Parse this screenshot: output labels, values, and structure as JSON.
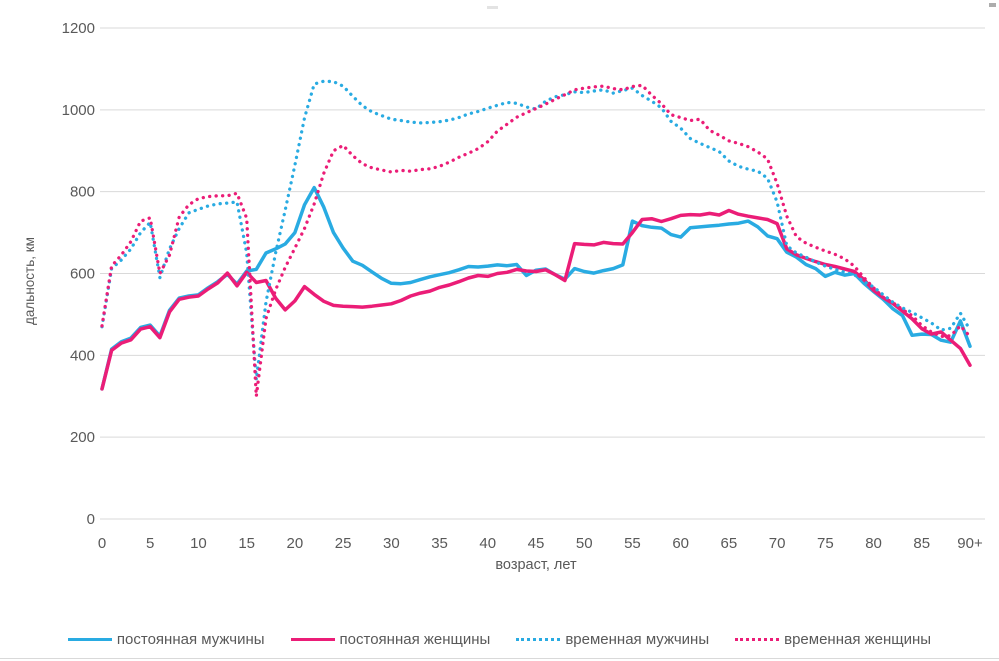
{
  "colors": {
    "blue": "#29ABE2",
    "pink": "#EB1D77",
    "grid": "#D9D9D9",
    "text": "#595959",
    "background": "#FFFFFF"
  },
  "axes": {
    "y_title": "дальность, км",
    "x_title": "возраст, лет",
    "y_ticks": [
      0,
      200,
      400,
      600,
      800,
      1000,
      1200
    ],
    "x_tick_labels": [
      "0",
      "5",
      "10",
      "15",
      "20",
      "25",
      "30",
      "35",
      "40",
      "45",
      "50",
      "55",
      "60",
      "65",
      "70",
      "75",
      "80",
      "85",
      "90+"
    ]
  },
  "chart_data": {
    "type": "line",
    "title": "",
    "xlabel": "возраст, лет",
    "ylabel": "дальность, км",
    "xlim": [
      0,
      90
    ],
    "ylim": [
      0,
      1200
    ],
    "grid": "horizontal",
    "legend_position": "bottom",
    "x_step": 1,
    "x_start": 0,
    "series": [
      {
        "name": "постоянная мужчины",
        "color_key": "blue",
        "line_style": "solid",
        "values": [
          318,
          415,
          433,
          442,
          468,
          474,
          447,
          510,
          540,
          545,
          548,
          565,
          580,
          598,
          574,
          606,
          610,
          650,
          660,
          672,
          700,
          768,
          810,
          762,
          700,
          662,
          630,
          620,
          604,
          588,
          576,
          575,
          578,
          585,
          592,
          597,
          602,
          609,
          617,
          616,
          618,
          621,
          619,
          622,
          595,
          608,
          611,
          597,
          586,
          612,
          605,
          601,
          607,
          612,
          621,
          728,
          717,
          713,
          711,
          695,
          689,
          712,
          714,
          716,
          718,
          721,
          723,
          728,
          714,
          692,
          685,
          652,
          640,
          622,
          612,
          593,
          603,
          596,
          600,
          576,
          556,
          537,
          514,
          497,
          449,
          452,
          451,
          437,
          432,
          484,
          422
        ]
      },
      {
        "name": "постоянная женщины",
        "color_key": "pink",
        "line_style": "solid",
        "values": [
          318,
          412,
          430,
          438,
          464,
          470,
          443,
          506,
          537,
          542,
          545,
          562,
          577,
          601,
          570,
          603,
          578,
          583,
          540,
          511,
          533,
          568,
          549,
          532,
          522,
          520,
          519,
          518,
          520,
          523,
          526,
          534,
          545,
          552,
          557,
          566,
          572,
          580,
          589,
          595,
          593,
          600,
          603,
          610,
          606,
          605,
          609,
          597,
          583,
          673,
          671,
          670,
          676,
          673,
          672,
          700,
          732,
          734,
          727,
          734,
          742,
          744,
          743,
          747,
          743,
          754,
          745,
          740,
          736,
          732,
          722,
          660,
          646,
          637,
          629,
          622,
          617,
          611,
          605,
          585,
          559,
          541,
          527,
          508,
          489,
          465,
          452,
          457,
          437,
          417,
          376
        ]
      },
      {
        "name": "временная мужчины",
        "color_key": "blue",
        "line_style": "dotted",
        "values": [
          470,
          612,
          633,
          660,
          700,
          725,
          590,
          660,
          710,
          748,
          757,
          765,
          770,
          772,
          775,
          650,
          340,
          530,
          650,
          755,
          865,
          980,
          1063,
          1070,
          1069,
          1058,
          1033,
          1010,
          995,
          986,
          977,
          974,
          970,
          968,
          969,
          971,
          975,
          981,
          990,
          996,
          1004,
          1011,
          1018,
          1016,
          1007,
          1002,
          1021,
          1032,
          1037,
          1044,
          1042,
          1046,
          1049,
          1041,
          1047,
          1053,
          1035,
          1021,
          1005,
          972,
          955,
          930,
          918,
          908,
          898,
          875,
          862,
          855,
          850,
          833,
          775,
          668,
          650,
          640,
          628,
          618,
          610,
          603,
          597,
          580,
          567,
          548,
          530,
          516,
          505,
          492,
          479,
          462,
          466,
          503,
          462
        ]
      },
      {
        "name": "временная женщины",
        "color_key": "pink",
        "line_style": "dotted",
        "values": [
          472,
          618,
          645,
          678,
          728,
          736,
          600,
          645,
          738,
          768,
          783,
          788,
          790,
          790,
          796,
          735,
          300,
          490,
          560,
          615,
          662,
          710,
          770,
          845,
          900,
          913,
          888,
          868,
          858,
          853,
          848,
          852,
          850,
          854,
          856,
          862,
          872,
          884,
          894,
          905,
          922,
          948,
          965,
          982,
          993,
          1003,
          1014,
          1026,
          1037,
          1049,
          1053,
          1056,
          1058,
          1052,
          1049,
          1057,
          1060,
          1036,
          1015,
          988,
          981,
          974,
          977,
          950,
          938,
          924,
          918,
          910,
          897,
          880,
          820,
          740,
          690,
          674,
          664,
          655,
          647,
          636,
          618,
          590,
          565,
          542,
          529,
          512,
          497,
          473,
          457,
          446,
          448,
          472,
          446
        ]
      }
    ]
  },
  "legend": {
    "items": [
      {
        "style": "solid",
        "color_key": "blue"
      },
      {
        "style": "solid",
        "color_key": "pink"
      },
      {
        "style": "dotted",
        "color_key": "blue"
      },
      {
        "style": "dotted",
        "color_key": "pink"
      }
    ]
  }
}
